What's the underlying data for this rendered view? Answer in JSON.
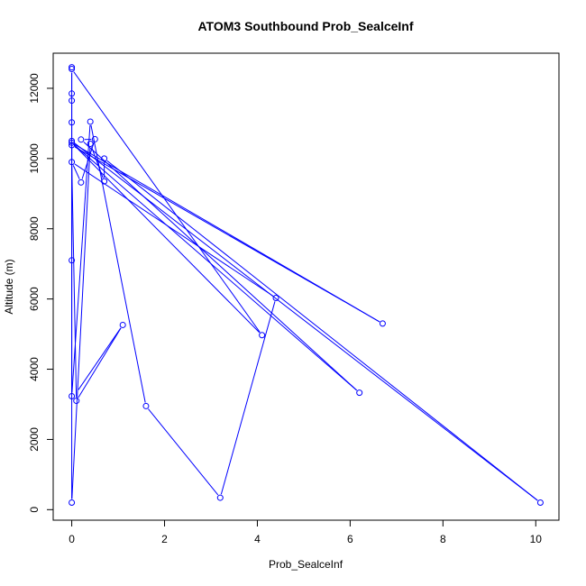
{
  "chart_data": {
    "type": "line",
    "title": "ATOM3 Southbound Prob_SealceInf",
    "xlabel": "Prob_SealceInf",
    "ylabel": "Altitude (m)",
    "xlim": [
      -0.4,
      10.5
    ],
    "ylim": [
      -300,
      13000
    ],
    "xticks": [
      0,
      2,
      4,
      6,
      8,
      10
    ],
    "yticks": [
      0,
      2000,
      4000,
      6000,
      8000,
      10000,
      12000
    ],
    "grid": false,
    "line_color": "#0000ff",
    "marker": "open-circle",
    "series": [
      {
        "points": [
          {
            "x": 0.0,
            "y": 12600
          },
          {
            "x": 0.0,
            "y": 12550
          },
          {
            "x": 0.0,
            "y": 11850
          },
          {
            "x": 0.0,
            "y": 11650
          },
          {
            "x": 0.0,
            "y": 11030
          },
          {
            "x": 0.0,
            "y": 10500
          },
          {
            "x": 0.0,
            "y": 10450
          },
          {
            "x": 0.0,
            "y": 10380
          },
          {
            "x": 0.0,
            "y": 9900
          },
          {
            "x": 0.0,
            "y": 7100
          },
          {
            "x": 0.0,
            "y": 3230
          },
          {
            "x": 0.0,
            "y": 200
          },
          {
            "x": 0.1,
            "y": 3100
          },
          {
            "x": 0.2,
            "y": 9320
          },
          {
            "x": 0.2,
            "y": 10540
          },
          {
            "x": 0.4,
            "y": 11050
          },
          {
            "x": 0.4,
            "y": 10420
          },
          {
            "x": 0.5,
            "y": 10550
          },
          {
            "x": 0.7,
            "y": 10000
          },
          {
            "x": 0.7,
            "y": 9350
          },
          {
            "x": 1.1,
            "y": 5260
          },
          {
            "x": 1.6,
            "y": 2950
          },
          {
            "x": 3.2,
            "y": 340
          },
          {
            "x": 4.1,
            "y": 4970
          },
          {
            "x": 4.4,
            "y": 6030
          },
          {
            "x": 6.2,
            "y": 3330
          },
          {
            "x": 6.7,
            "y": 5300
          },
          {
            "x": 10.1,
            "y": 200
          }
        ],
        "path": [
          {
            "x": 0.0,
            "y": 12600
          },
          {
            "x": 0.0,
            "y": 12550
          },
          {
            "x": 0.0,
            "y": 11850
          },
          {
            "x": 0.0,
            "y": 11650
          },
          {
            "x": 0.0,
            "y": 11030
          },
          {
            "x": 0.0,
            "y": 10500
          },
          {
            "x": 10.1,
            "y": 200
          },
          {
            "x": 0.7,
            "y": 10000
          },
          {
            "x": 0.7,
            "y": 9350
          },
          {
            "x": 0.4,
            "y": 10420
          },
          {
            "x": 0.0,
            "y": 200
          },
          {
            "x": 0.0,
            "y": 10450
          },
          {
            "x": 6.2,
            "y": 3330
          },
          {
            "x": 0.2,
            "y": 10540
          },
          {
            "x": 0.5,
            "y": 10550
          },
          {
            "x": 0.2,
            "y": 9320
          },
          {
            "x": 0.0,
            "y": 9900
          },
          {
            "x": 0.0,
            "y": 10380
          },
          {
            "x": 6.7,
            "y": 5300
          },
          {
            "x": 0.0,
            "y": 10450
          },
          {
            "x": 4.1,
            "y": 4970
          },
          {
            "x": 0.0,
            "y": 12550
          },
          {
            "x": 0.0,
            "y": 7100
          },
          {
            "x": 0.0,
            "y": 3230
          },
          {
            "x": 0.4,
            "y": 11050
          },
          {
            "x": 1.6,
            "y": 2950
          },
          {
            "x": 3.2,
            "y": 340
          },
          {
            "x": 4.4,
            "y": 6030
          },
          {
            "x": 0.0,
            "y": 9900
          },
          {
            "x": 0.1,
            "y": 3100
          },
          {
            "x": 1.1,
            "y": 5260
          },
          {
            "x": 0.1,
            "y": 3330
          }
        ]
      }
    ]
  }
}
